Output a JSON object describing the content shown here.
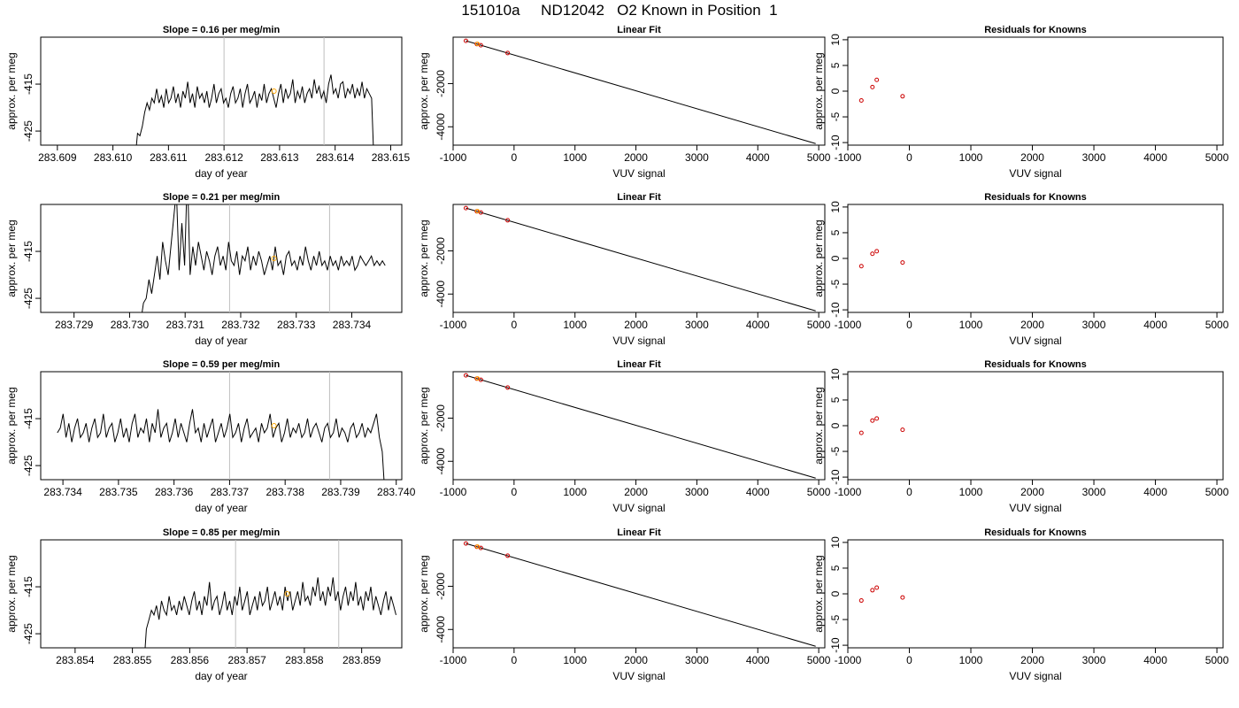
{
  "figure": {
    "title": "151010a     ND12042   O2 Known in Position  1"
  },
  "colors": {
    "line": "#000000",
    "point": "#cc0000",
    "highlight": "#ffa500",
    "vline": "#bebebe"
  },
  "chart_data": [
    {
      "type": "line",
      "row": 0,
      "title": "Slope =  0.16  per meg/min",
      "xlabel": "day of year",
      "ylabel": "approx. per meg",
      "xlim": [
        283.6087,
        283.6152
      ],
      "ylim": [
        -428,
        -405
      ],
      "xticks": [
        "283.609",
        "283.610",
        "283.611",
        "283.612",
        "283.613",
        "283.614",
        "283.615"
      ],
      "yticks": [
        "-415",
        "-425"
      ],
      "vlines": [
        283.612,
        283.6138
      ],
      "highlight_point": {
        "x": 283.6129,
        "y": -416.5
      },
      "series": [
        {
          "x_start": 283.6104,
          "x_end": 283.6147,
          "values": [
            -431,
            -425.5,
            -426,
            -424,
            -421,
            -419,
            -420.5,
            -418,
            -419,
            -416,
            -419,
            -417.5,
            -420,
            -416,
            -419,
            -418,
            -415.5,
            -419,
            -417,
            -420,
            -416.5,
            -418,
            -414.5,
            -419,
            -417,
            -420,
            -415.5,
            -418,
            -417,
            -419,
            -416.5,
            -420,
            -418,
            -415,
            -419,
            -417,
            -416,
            -419,
            -418,
            -420,
            -417,
            -415.5,
            -419,
            -418,
            -416,
            -420,
            -417,
            -415,
            -419,
            -418,
            -416.5,
            -420,
            -417,
            -418.5,
            -415,
            -419,
            -417,
            -416,
            -418,
            -420,
            -417,
            -415,
            -419,
            -416,
            -418,
            -417,
            -414,
            -419,
            -416.5,
            -418,
            -415.5,
            -419,
            -417,
            -416,
            -418,
            -414,
            -417,
            -415.5,
            -418,
            -416.5,
            -419,
            -415,
            -413,
            -417,
            -416,
            -418,
            -415,
            -414.5,
            -418,
            -416,
            -417,
            -415,
            -418,
            -416,
            -417.5,
            -414.5,
            -418,
            -416,
            -417,
            -418,
            -432
          ]
        }
      ]
    },
    {
      "type": "scatter",
      "row": 0,
      "title": "Linear Fit",
      "xlabel": "VUV signal",
      "ylabel": "approx. per meg",
      "xlim": [
        -1000,
        5100
      ],
      "ylim": [
        -4850,
        150
      ],
      "xticks": [
        -1000,
        0,
        1000,
        2000,
        3000,
        4000,
        5000
      ],
      "yticks": [
        -2000,
        -4000
      ],
      "fit_line": [
        [
          -790,
          -20
        ],
        [
          4950,
          -4780
        ]
      ],
      "points": [
        [
          -790,
          -20
        ],
        [
          -610,
          -170
        ],
        [
          -545,
          -225
        ],
        [
          -105,
          -585
        ]
      ],
      "highlight_point": [
        -600,
        -160
      ]
    },
    {
      "type": "scatter",
      "row": 0,
      "title": "Residuals for Knowns",
      "xlabel": "VUV signal",
      "ylabel": "approx. per meg",
      "xlim": [
        -1000,
        5100
      ],
      "ylim": [
        -10.5,
        10.5
      ],
      "xticks": [
        -1000,
        0,
        1000,
        2000,
        3000,
        4000,
        5000
      ],
      "yticks": [
        10,
        5,
        0,
        -5,
        -10
      ],
      "points": [
        [
          -780,
          -1.8
        ],
        [
          -600,
          0.8
        ],
        [
          -530,
          2.2
        ],
        [
          -110,
          -1.0
        ]
      ]
    },
    {
      "type": "line",
      "row": 1,
      "title": "Slope =  0.21  per meg/min",
      "xlabel": "day of year",
      "ylabel": "approx. per meg",
      "xlim": [
        283.7284,
        283.7349
      ],
      "ylim": [
        -428,
        -405
      ],
      "xticks": [
        "283.729",
        "283.730",
        "283.731",
        "283.732",
        "283.733",
        "283.734"
      ],
      "yticks": [
        "-415",
        "-425"
      ],
      "vlines": [
        283.7318,
        283.7336
      ],
      "highlight_point": {
        "x": 283.7326,
        "y": -416.5
      },
      "series": [
        {
          "x_start": 283.7302,
          "x_end": 283.7346,
          "values": [
            -430,
            -426,
            -425,
            -421,
            -424,
            -420,
            -416,
            -421,
            -413,
            -417,
            -420,
            -414,
            -408,
            -402,
            -419,
            -409,
            -418,
            -398,
            -420,
            -414,
            -418,
            -413,
            -416,
            -419,
            -415,
            -417,
            -420,
            -416,
            -414,
            -418,
            -416,
            -419,
            -413,
            -417,
            -418,
            -415,
            -420,
            -416,
            -417,
            -414,
            -419,
            -416,
            -418,
            -415,
            -417,
            -420,
            -418,
            -416,
            -419,
            -414,
            -418,
            -417,
            -420,
            -416,
            -415,
            -418,
            -417,
            -419,
            -416,
            -418,
            -414,
            -417,
            -419,
            -416,
            -418,
            -415,
            -418,
            -417,
            -419,
            -416,
            -418,
            -417,
            -419,
            -416,
            -418,
            -417,
            -418,
            -416,
            -419,
            -418,
            -416,
            -417,
            -418,
            -417,
            -416,
            -418,
            -417,
            -418,
            -417,
            -418
          ]
        }
      ]
    },
    {
      "type": "scatter",
      "row": 1,
      "title": "Linear Fit",
      "xlabel": "VUV signal",
      "ylabel": "approx. per meg",
      "xlim": [
        -1000,
        5100
      ],
      "ylim": [
        -4850,
        150
      ],
      "xticks": [
        -1000,
        0,
        1000,
        2000,
        3000,
        4000,
        5000
      ],
      "yticks": [
        -2000,
        -4000
      ],
      "fit_line": [
        [
          -790,
          -20
        ],
        [
          4950,
          -4780
        ]
      ],
      "points": [
        [
          -790,
          -20
        ],
        [
          -610,
          -170
        ],
        [
          -545,
          -225
        ],
        [
          -105,
          -585
        ]
      ],
      "highlight_point": [
        -600,
        -160
      ]
    },
    {
      "type": "scatter",
      "row": 1,
      "title": "Residuals for Knowns",
      "xlabel": "VUV signal",
      "ylabel": "approx. per meg",
      "xlim": [
        -1000,
        5100
      ],
      "ylim": [
        -10.5,
        10.5
      ],
      "xticks": [
        -1000,
        0,
        1000,
        2000,
        3000,
        4000,
        5000
      ],
      "yticks": [
        10,
        5,
        0,
        -5,
        -10
      ],
      "points": [
        [
          -780,
          -1.5
        ],
        [
          -600,
          0.9
        ],
        [
          -530,
          1.4
        ],
        [
          -110,
          -0.8
        ]
      ]
    },
    {
      "type": "line",
      "row": 2,
      "title": "Slope =  0.59  per meg/min",
      "xlabel": "day of year",
      "ylabel": "approx. per meg",
      "xlim": [
        283.7336,
        283.7401
      ],
      "ylim": [
        -428,
        -405
      ],
      "xticks": [
        "283.734",
        "283.735",
        "283.736",
        "283.737",
        "283.738",
        "283.739",
        "283.740"
      ],
      "yticks": [
        "-415",
        "-425"
      ],
      "vlines": [
        283.737,
        283.7388
      ],
      "highlight_point": {
        "x": 283.7378,
        "y": -416.5
      },
      "series": [
        {
          "x_start": 283.7339,
          "x_end": 283.7398,
          "values": [
            -418,
            -417,
            -414,
            -419,
            -416,
            -420,
            -417,
            -415,
            -419,
            -418,
            -416,
            -420,
            -417,
            -415,
            -419,
            -418,
            -414,
            -419,
            -417,
            -416,
            -420,
            -418,
            -415,
            -419,
            -417,
            -420,
            -416,
            -414,
            -419,
            -417,
            -418,
            -415,
            -420,
            -416,
            -418,
            -413,
            -419,
            -417,
            -416,
            -420,
            -418,
            -415,
            -419,
            -416,
            -418,
            -420,
            -416,
            -413,
            -418,
            -417,
            -420,
            -416,
            -419,
            -417,
            -415,
            -420,
            -418,
            -416,
            -419,
            -417,
            -414,
            -419,
            -418,
            -416,
            -420,
            -417,
            -415,
            -419,
            -418,
            -417,
            -420,
            -416,
            -418,
            -417,
            -414,
            -419,
            -417,
            -416,
            -420,
            -418,
            -415,
            -419,
            -417,
            -418,
            -416,
            -419,
            -418,
            -415,
            -419,
            -417,
            -416,
            -418,
            -420,
            -417,
            -416,
            -419,
            -418,
            -415,
            -419,
            -417,
            -418,
            -420,
            -417,
            -416,
            -419,
            -418,
            -416,
            -419,
            -417,
            -418,
            -416,
            -414,
            -419,
            -422,
            -432
          ]
        }
      ]
    },
    {
      "type": "scatter",
      "row": 2,
      "title": "Linear Fit",
      "xlabel": "VUV signal",
      "ylabel": "approx. per meg",
      "xlim": [
        -1000,
        5100
      ],
      "ylim": [
        -4850,
        150
      ],
      "xticks": [
        -1000,
        0,
        1000,
        2000,
        3000,
        4000,
        5000
      ],
      "yticks": [
        -2000,
        -4000
      ],
      "fit_line": [
        [
          -790,
          -20
        ],
        [
          4950,
          -4780
        ]
      ],
      "points": [
        [
          -790,
          -20
        ],
        [
          -610,
          -170
        ],
        [
          -545,
          -225
        ],
        [
          -105,
          -585
        ]
      ],
      "highlight_point": [
        -600,
        -160
      ]
    },
    {
      "type": "scatter",
      "row": 2,
      "title": "Residuals for Knowns",
      "xlabel": "VUV signal",
      "ylabel": "approx. per meg",
      "xlim": [
        -1000,
        5100
      ],
      "ylim": [
        -10.5,
        10.5
      ],
      "xticks": [
        -1000,
        0,
        1000,
        2000,
        3000,
        4000,
        5000
      ],
      "yticks": [
        10,
        5,
        0,
        -5,
        -10
      ],
      "points": [
        [
          -780,
          -1.4
        ],
        [
          -600,
          1.0
        ],
        [
          -530,
          1.4
        ],
        [
          -110,
          -0.8
        ]
      ]
    },
    {
      "type": "line",
      "row": 3,
      "title": "Slope =  0.85  per meg/min",
      "xlabel": "day of year",
      "ylabel": "approx. per meg",
      "xlim": [
        283.8534,
        283.8597
      ],
      "ylim": [
        -428,
        -405
      ],
      "xticks": [
        "283.854",
        "283.855",
        "283.856",
        "283.857",
        "283.858",
        "283.859"
      ],
      "yticks": [
        "-415",
        "-425"
      ],
      "vlines": [
        283.8568,
        283.8586
      ],
      "highlight_point": {
        "x": 283.8577,
        "y": -416.5
      },
      "series": [
        {
          "x_start": 283.8552,
          "x_end": 283.8596,
          "values": [
            -432,
            -424,
            -422,
            -420,
            -421,
            -419,
            -422,
            -418,
            -420,
            -421,
            -417,
            -420,
            -419,
            -421,
            -418,
            -420,
            -417,
            -419,
            -421,
            -418,
            -416,
            -420,
            -418,
            -421,
            -417,
            -419,
            -414,
            -420,
            -418,
            -417,
            -421,
            -419,
            -416,
            -420,
            -418,
            -421,
            -417,
            -419,
            -415,
            -420,
            -418,
            -416,
            -421,
            -419,
            -417,
            -420,
            -416,
            -419,
            -418,
            -415,
            -420,
            -418,
            -416,
            -419,
            -417,
            -420,
            -415,
            -418,
            -416,
            -420,
            -418,
            -416,
            -419,
            -414,
            -418,
            -417,
            -419,
            -415,
            -417,
            -413,
            -418,
            -416,
            -419,
            -415,
            -417,
            -413,
            -418,
            -416,
            -420,
            -417,
            -415,
            -419,
            -416,
            -418,
            -414,
            -419,
            -417,
            -420,
            -416,
            -418,
            -415,
            -420,
            -417,
            -419,
            -421,
            -418,
            -416,
            -420,
            -417,
            -419,
            -421
          ]
        }
      ]
    },
    {
      "type": "scatter",
      "row": 3,
      "title": "Linear Fit",
      "xlabel": "VUV signal",
      "ylabel": "approx. per meg",
      "xlim": [
        -1000,
        5100
      ],
      "ylim": [
        -4850,
        150
      ],
      "xticks": [
        -1000,
        0,
        1000,
        2000,
        3000,
        4000,
        5000
      ],
      "yticks": [
        -2000,
        -4000
      ],
      "fit_line": [
        [
          -790,
          -20
        ],
        [
          4950,
          -4780
        ]
      ],
      "points": [
        [
          -790,
          -20
        ],
        [
          -610,
          -170
        ],
        [
          -545,
          -225
        ],
        [
          -105,
          -585
        ]
      ],
      "highlight_point": [
        -600,
        -160
      ]
    },
    {
      "type": "scatter",
      "row": 3,
      "title": "Residuals for Knowns",
      "xlabel": "VUV signal",
      "ylabel": "approx. per meg",
      "xlim": [
        -1000,
        5100
      ],
      "ylim": [
        -10.5,
        10.5
      ],
      "xticks": [
        -1000,
        0,
        1000,
        2000,
        3000,
        4000,
        5000
      ],
      "yticks": [
        10,
        5,
        0,
        -5,
        -10
      ],
      "points": [
        [
          -780,
          -1.3
        ],
        [
          -600,
          0.7
        ],
        [
          -530,
          1.2
        ],
        [
          -110,
          -0.7
        ]
      ]
    }
  ]
}
